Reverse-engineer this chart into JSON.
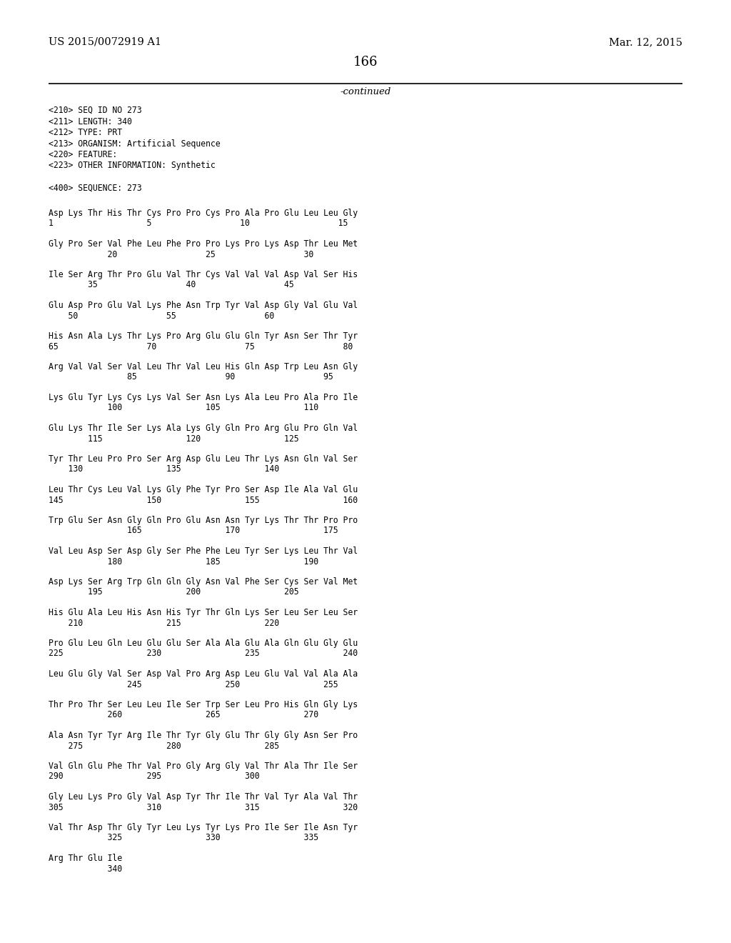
{
  "header_left": "US 2015/0072919 A1",
  "header_right": "Mar. 12, 2015",
  "page_number": "166",
  "continued_text": "-continued",
  "background_color": "#ffffff",
  "text_color": "#000000",
  "metadata_lines": [
    "<210> SEQ ID NO 273",
    "<211> LENGTH: 340",
    "<212> TYPE: PRT",
    "<213> ORGANISM: Artificial Sequence",
    "<220> FEATURE:",
    "<223> OTHER INFORMATION: Synthetic",
    "",
    "<400> SEQUENCE: 273"
  ],
  "sequence_blocks": [
    {
      "aa_line": "Asp Lys Thr His Thr Cys Pro Pro Cys Pro Ala Pro Glu Leu Leu Gly",
      "num_line": "1                   5                  10                  15"
    },
    {
      "aa_line": "Gly Pro Ser Val Phe Leu Phe Pro Pro Lys Pro Lys Asp Thr Leu Met",
      "num_line": "            20                  25                  30"
    },
    {
      "aa_line": "Ile Ser Arg Thr Pro Glu Val Thr Cys Val Val Val Asp Val Ser His",
      "num_line": "        35                  40                  45"
    },
    {
      "aa_line": "Glu Asp Pro Glu Val Lys Phe Asn Trp Tyr Val Asp Gly Val Glu Val",
      "num_line": "    50                  55                  60"
    },
    {
      "aa_line": "His Asn Ala Lys Thr Lys Pro Arg Glu Glu Gln Tyr Asn Ser Thr Tyr",
      "num_line": "65                  70                  75                  80"
    },
    {
      "aa_line": "Arg Val Val Ser Val Leu Thr Val Leu His Gln Asp Trp Leu Asn Gly",
      "num_line": "                85                  90                  95"
    },
    {
      "aa_line": "Lys Glu Tyr Lys Cys Lys Val Ser Asn Lys Ala Leu Pro Ala Pro Ile",
      "num_line": "            100                 105                 110"
    },
    {
      "aa_line": "Glu Lys Thr Ile Ser Lys Ala Lys Gly Gln Pro Arg Glu Pro Gln Val",
      "num_line": "        115                 120                 125"
    },
    {
      "aa_line": "Tyr Thr Leu Pro Pro Ser Arg Asp Glu Leu Thr Lys Asn Gln Val Ser",
      "num_line": "    130                 135                 140"
    },
    {
      "aa_line": "Leu Thr Cys Leu Val Lys Gly Phe Tyr Pro Ser Asp Ile Ala Val Glu",
      "num_line": "145                 150                 155                 160"
    },
    {
      "aa_line": "Trp Glu Ser Asn Gly Gln Pro Glu Asn Asn Tyr Lys Thr Thr Pro Pro",
      "num_line": "                165                 170                 175"
    },
    {
      "aa_line": "Val Leu Asp Ser Asp Gly Ser Phe Phe Leu Tyr Ser Lys Leu Thr Val",
      "num_line": "            180                 185                 190"
    },
    {
      "aa_line": "Asp Lys Ser Arg Trp Gln Gln Gly Asn Val Phe Ser Cys Ser Val Met",
      "num_line": "        195                 200                 205"
    },
    {
      "aa_line": "His Glu Ala Leu His Asn His Tyr Thr Gln Lys Ser Leu Ser Leu Ser",
      "num_line": "    210                 215                 220"
    },
    {
      "aa_line": "Pro Glu Leu Gln Leu Glu Glu Ser Ala Ala Glu Ala Gln Glu Gly Glu",
      "num_line": "225                 230                 235                 240"
    },
    {
      "aa_line": "Leu Glu Gly Val Ser Asp Val Pro Arg Asp Leu Glu Val Val Ala Ala",
      "num_line": "                245                 250                 255"
    },
    {
      "aa_line": "Thr Pro Thr Ser Leu Leu Ile Ser Trp Ser Leu Pro His Gln Gly Lys",
      "num_line": "            260                 265                 270"
    },
    {
      "aa_line": "Ala Asn Tyr Tyr Arg Ile Thr Tyr Gly Glu Thr Gly Gly Asn Ser Pro",
      "num_line": "    275                 280                 285"
    },
    {
      "aa_line": "Val Gln Glu Phe Thr Val Pro Gly Arg Gly Val Thr Ala Thr Ile Ser",
      "num_line": "290                 295                 300"
    },
    {
      "aa_line": "Gly Leu Lys Pro Gly Val Asp Tyr Thr Ile Thr Val Tyr Ala Val Thr",
      "num_line": "305                 310                 315                 320"
    },
    {
      "aa_line": "Val Thr Asp Thr Gly Tyr Leu Lys Tyr Lys Pro Ile Ser Ile Asn Tyr",
      "num_line": "            325                 330                 335"
    },
    {
      "aa_line": "Arg Thr Glu Ile",
      "num_line": "            340"
    }
  ]
}
